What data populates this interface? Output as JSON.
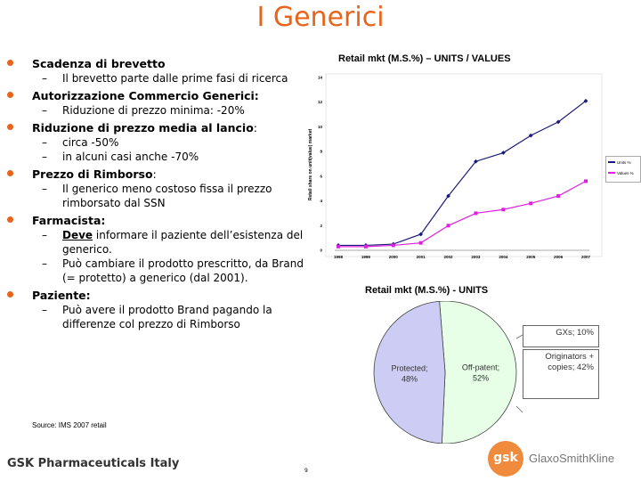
{
  "slide": {
    "title": "I Generici",
    "footer": "GSK Pharmaceuticals Italy",
    "page_number": "9",
    "source": "Source: IMS 2007 retail",
    "logo_mark": "gsk",
    "logo_text": "GlaxoSmithKline",
    "accent_color": "#e8641b"
  },
  "bullets": [
    {
      "label": "Scadenza di brevetto",
      "rest": "",
      "subs": [
        {
          "text": "Il brevetto parte dalle prime fasi di ricerca"
        }
      ]
    },
    {
      "label": "Autorizzazione Commercio Generici:",
      "rest": "",
      "subs": [
        {
          "text": " Riduzione di prezzo minima: -20%"
        }
      ]
    },
    {
      "label": "Riduzione di prezzo media al lancio",
      "rest": ":",
      "subs": [
        {
          "text": "circa -50%"
        },
        {
          "text": "in alcuni casi anche -70%"
        }
      ]
    },
    {
      "label": "Prezzo di Rimborso",
      "rest": ":",
      "subs": [
        {
          "text": "Il generico meno costoso fissa il prezzo rimborsato dal SSN"
        }
      ]
    },
    {
      "label": "Farmacista:",
      "rest": "",
      "subs": [
        {
          "prefix": "Deve",
          "text": " informare il paziente dell’esistenza del generico."
        },
        {
          "text": "Può cambiare il prodotto prescritto, da Brand (= protetto) a generico (dal 2001)."
        }
      ]
    },
    {
      "label": "Paziente:",
      "rest": "",
      "subs": [
        {
          "text": "Può avere il prodotto Brand pagando la differenze col prezzo di Rimborso"
        }
      ]
    }
  ],
  "chart_data": [
    {
      "type": "line",
      "title": "Retail mkt (M.S.%) – UNITS / VALUES",
      "ylabel": "Retail share on unit(value) market",
      "xlabel": "",
      "categories": [
        "1998",
        "1999",
        "2000",
        "2001",
        "2002",
        "2003",
        "2004",
        "2005",
        "2006",
        "2007"
      ],
      "ylim": [
        0,
        14
      ],
      "yticks": [
        "0",
        "2",
        "4",
        "6",
        "8",
        "10",
        "12",
        "14"
      ],
      "series": [
        {
          "name": "Units %",
          "color": "#1a1a7a",
          "values": [
            0.4,
            0.4,
            0.5,
            1.3,
            4.4,
            7.2,
            7.9,
            9.3,
            10.4,
            12.1
          ]
        },
        {
          "name": "Values %",
          "color": "#e020e0",
          "values": [
            0.3,
            0.3,
            0.4,
            0.6,
            2.0,
            3.0,
            3.3,
            3.8,
            4.4,
            5.6
          ]
        }
      ]
    },
    {
      "type": "pie",
      "title": "Retail mkt (M.S.%) - UNITS",
      "slices": [
        {
          "label": "Protected",
          "display": "Protected;",
          "value_label": "48%",
          "value": 48,
          "color": "#ccccf5"
        },
        {
          "label": "Off-patent",
          "display": "Off-patent;",
          "value_label": "52%",
          "value": 52,
          "color": "#e6ffe6"
        }
      ],
      "breakdown": [
        {
          "label": "GXs; 10%",
          "value": 10
        },
        {
          "label": "Originators + copies; 42%",
          "value": 42
        }
      ]
    }
  ]
}
